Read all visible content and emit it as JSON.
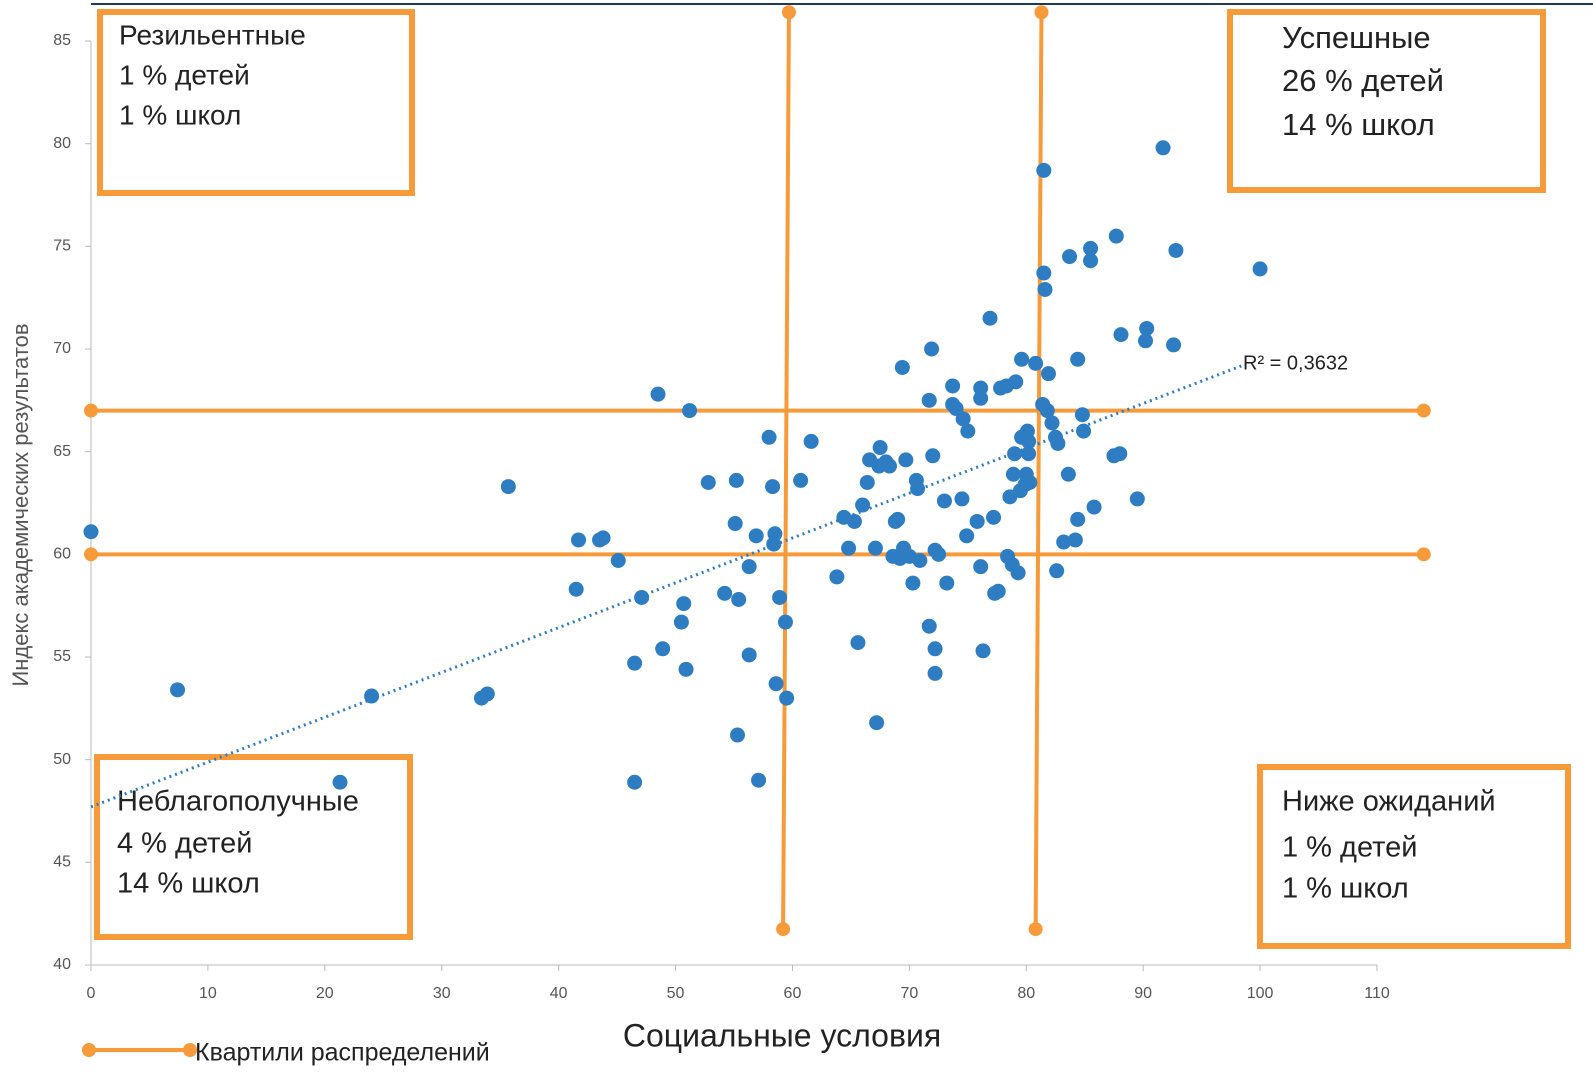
{
  "chart_data": {
    "type": "scatter",
    "xlabel": "Социальные условия",
    "ylabel": "Индекс академических результатов",
    "xlim": [
      0,
      110
    ],
    "ylim": [
      40,
      85
    ],
    "xticks": [
      0,
      10,
      20,
      30,
      40,
      50,
      60,
      70,
      80,
      90,
      100,
      110
    ],
    "yticks": [
      40,
      45,
      50,
      55,
      60,
      65,
      70,
      75,
      80,
      85
    ],
    "series": [
      {
        "color": "#2e7dc3",
        "x": [
          0,
          7.4,
          21.3,
          24.0,
          33.4,
          33.9,
          35.7,
          41.7,
          41.5,
          43.5,
          43.8,
          45.1,
          46.5,
          46.5,
          47.1,
          48.5,
          48.9,
          50.5,
          50.7,
          50.9,
          51.2,
          52.8,
          54.2,
          55.2,
          55.1,
          55.4,
          55.3,
          56.3,
          56.3,
          56.9,
          57.1,
          58.0,
          58.3,
          58.4,
          58.5,
          58.6,
          58.9,
          59.4,
          59.5,
          60.7,
          61.6,
          63.8,
          64.4,
          64.8,
          65.3,
          65.6,
          66.0,
          66.4,
          66.6,
          67.1,
          67.2,
          67.4,
          67.5,
          68.0,
          68.3,
          68.6,
          68.8,
          69.0,
          69.2,
          69.4,
          69.5,
          69.7,
          70.0,
          70.3,
          70.6,
          70.7,
          70.9,
          71.7,
          71.7,
          71.9,
          72.0,
          72.2,
          72.2,
          72.2,
          72.5,
          73.0,
          73.2,
          73.7,
          73.7,
          74.0,
          74.5,
          74.6,
          75.0,
          74.9,
          75.8,
          76.1,
          76.1,
          76.1,
          76.3,
          76.9,
          77.2,
          77.3,
          77.6,
          77.8,
          78.3,
          78.4,
          78.6,
          78.8,
          78.9,
          79.0,
          79.1,
          79.3,
          79.5,
          79.6,
          79.6,
          79.9,
          80.0,
          80.1,
          80.2,
          80.2,
          80.3,
          80.8,
          81.4,
          81.5,
          81.5,
          81.6,
          81.8,
          81.9,
          82.2,
          82.5,
          82.7,
          82.6,
          83.2,
          83.6,
          83.7,
          84.2,
          84.4,
          84.4,
          84.8,
          84.9,
          85.5,
          85.5,
          85.8,
          87.5,
          87.7,
          88.0,
          88.1,
          89.5,
          90.2,
          90.3,
          91.7,
          92.6,
          92.8,
          100.0
        ],
        "y": [
          61.1,
          53.4,
          48.9,
          53.1,
          53.0,
          53.2,
          63.3,
          60.7,
          58.3,
          60.7,
          60.8,
          59.7,
          54.7,
          48.9,
          57.9,
          67.8,
          55.4,
          56.7,
          57.6,
          54.4,
          67.0,
          63.5,
          58.1,
          63.6,
          61.5,
          57.8,
          51.2,
          55.1,
          59.4,
          60.9,
          49.0,
          65.7,
          63.3,
          60.5,
          61.0,
          53.7,
          57.9,
          56.7,
          53.0,
          63.6,
          65.5,
          58.9,
          61.8,
          60.3,
          61.6,
          55.7,
          62.4,
          63.5,
          64.6,
          60.3,
          51.8,
          64.3,
          65.2,
          64.5,
          64.3,
          59.9,
          61.6,
          61.7,
          59.8,
          69.1,
          60.3,
          64.6,
          59.9,
          58.6,
          63.6,
          63.2,
          59.7,
          56.5,
          67.5,
          70.0,
          64.8,
          60.2,
          55.4,
          54.2,
          60.0,
          62.6,
          58.6,
          68.2,
          67.3,
          67.1,
          62.7,
          66.6,
          66.0,
          60.9,
          61.6,
          67.6,
          59.4,
          68.1,
          55.3,
          71.5,
          61.8,
          58.1,
          58.2,
          68.1,
          68.2,
          59.9,
          62.8,
          59.5,
          63.9,
          64.9,
          68.4,
          59.1,
          63.1,
          65.7,
          69.5,
          63.4,
          63.9,
          66.0,
          64.9,
          65.5,
          63.5,
          69.3,
          67.3,
          78.7,
          73.7,
          72.9,
          67.0,
          68.8,
          66.4,
          65.7,
          65.4,
          59.2,
          60.6,
          63.9,
          74.5,
          60.7,
          61.7,
          69.5,
          66.8,
          66.0,
          74.9,
          74.3,
          62.3,
          64.8,
          75.5,
          64.9,
          70.7,
          62.7,
          70.4,
          71.0,
          79.8,
          70.2,
          74.8,
          73.9
        ]
      }
    ],
    "trendline": {
      "x": [
        0,
        98.5
      ],
      "y": [
        47.7,
        69.2
      ],
      "color": "#2e7dc3",
      "label": "R² = 0,3632"
    },
    "quartiles": {
      "name": "Квартили распределений",
      "color": "#f79a3a",
      "lines": [
        {
          "x": [
            0,
            114
          ],
          "y": [
            67,
            67
          ]
        },
        {
          "x": [
            0,
            114
          ],
          "y": [
            60,
            60
          ]
        },
        {
          "x": [
            59.7,
            59.2
          ],
          "y": [
            86.4,
            41.75
          ]
        },
        {
          "x": [
            81.3,
            80.8
          ],
          "y": [
            86.4,
            41.75
          ]
        }
      ]
    },
    "quadrants": [
      {
        "lines": [
          "Резильентные",
          "1 % детей",
          "1 % школ"
        ]
      },
      {
        "lines": [
          "Успешные",
          "26 % детей",
          "14 % школ"
        ]
      },
      {
        "lines": [
          "Неблагополучные",
          "4 % детей",
          "14 % школ"
        ]
      },
      {
        "lines": [
          "Ниже ожиданий",
          "1 % детей",
          "1 % школ"
        ]
      }
    ]
  }
}
